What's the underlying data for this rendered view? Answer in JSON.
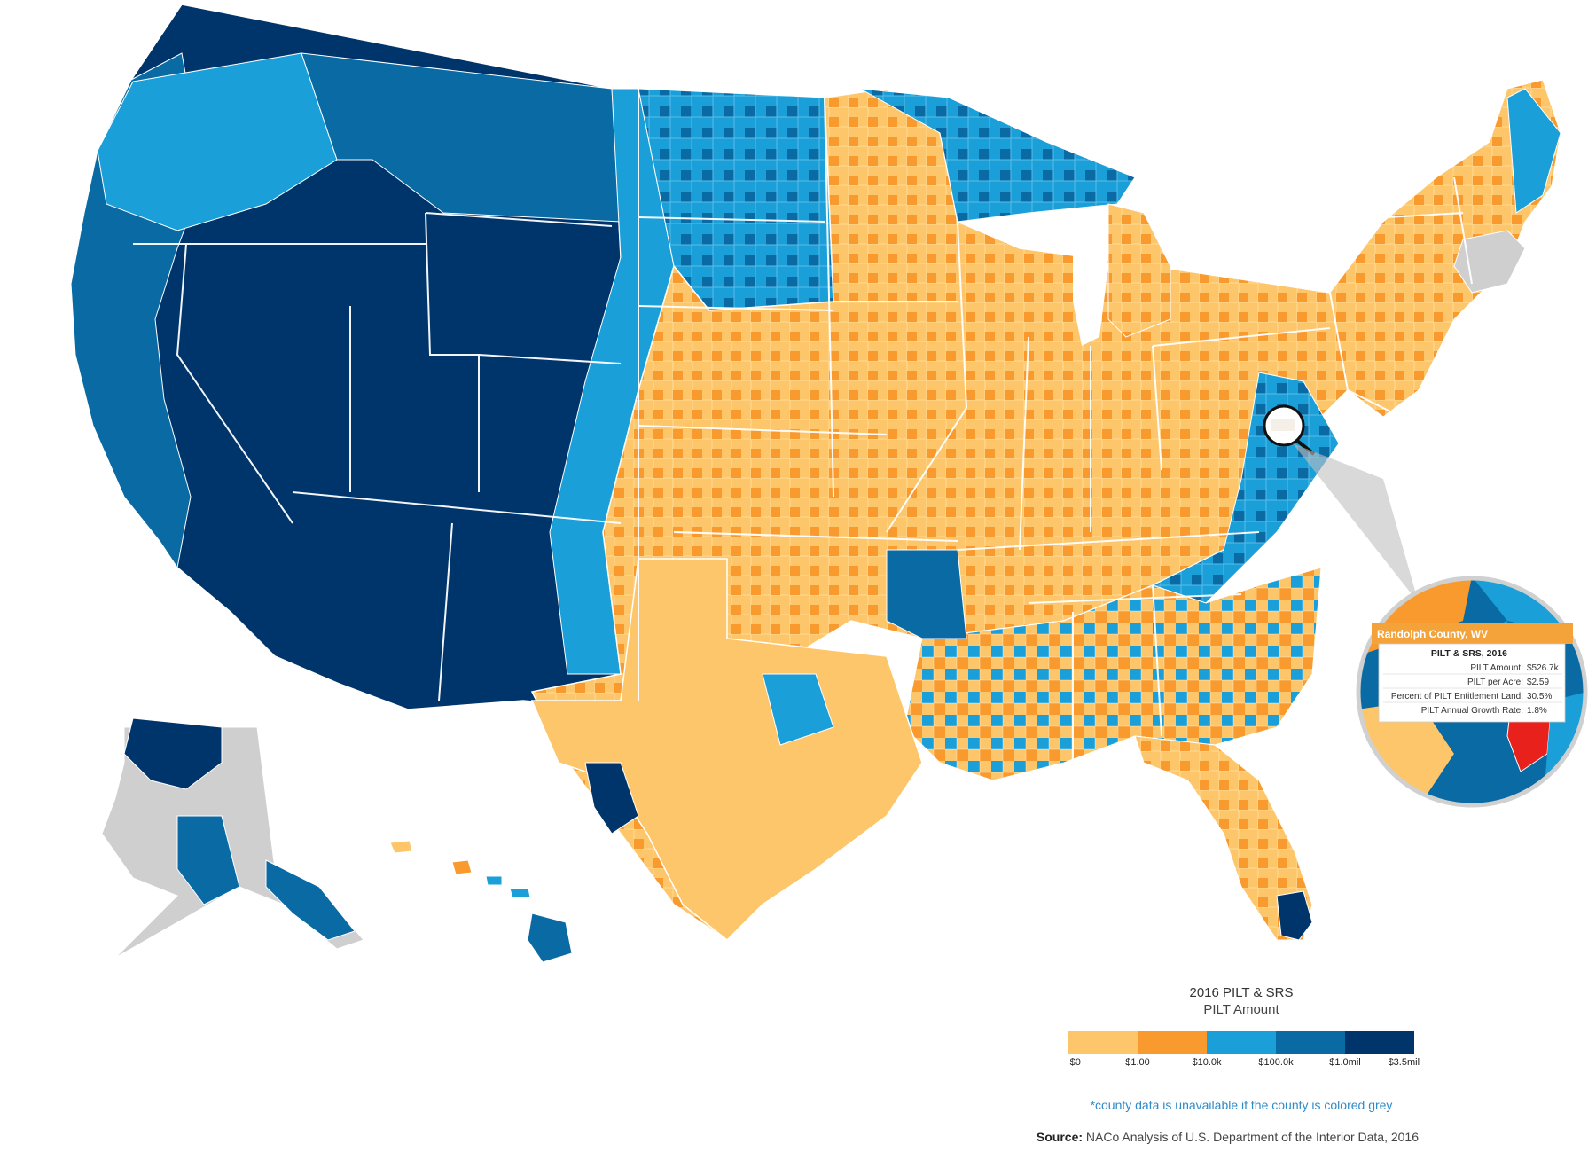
{
  "legend": {
    "title": "2016 PILT & SRS",
    "subtitle": "PILT Amount",
    "colors": [
      "#fdc66b",
      "#f99a2e",
      "#1a9fd9",
      "#0a6aa3",
      "#00356b"
    ],
    "no_data_color": "#cfcfcf",
    "ticks": [
      "$0",
      "$1.00",
      "$10.0k",
      "$100.0k",
      "$1.0mil",
      "$3.5mil"
    ]
  },
  "note": "*county data is unavailable if the county is colored grey",
  "source": {
    "label": "Source:",
    "text": "NACo Analysis of U.S. Department of the Interior Data, 2016"
  },
  "tooltip": {
    "county": "Randolph County, WV",
    "heading": "PILT & SRS, 2016",
    "rows": [
      {
        "label": "PILT Amount:",
        "value": "$526.7k"
      },
      {
        "label": "PILT per Acre:",
        "value": "$2.59"
      },
      {
        "label": "Percent of PILT Entitlement Land:",
        "value": "30.5%"
      },
      {
        "label": "PILT Annual Growth Rate:",
        "value": "1.8%"
      }
    ],
    "highlight_color": "#e8211d",
    "header_color": "#f4a23a"
  }
}
